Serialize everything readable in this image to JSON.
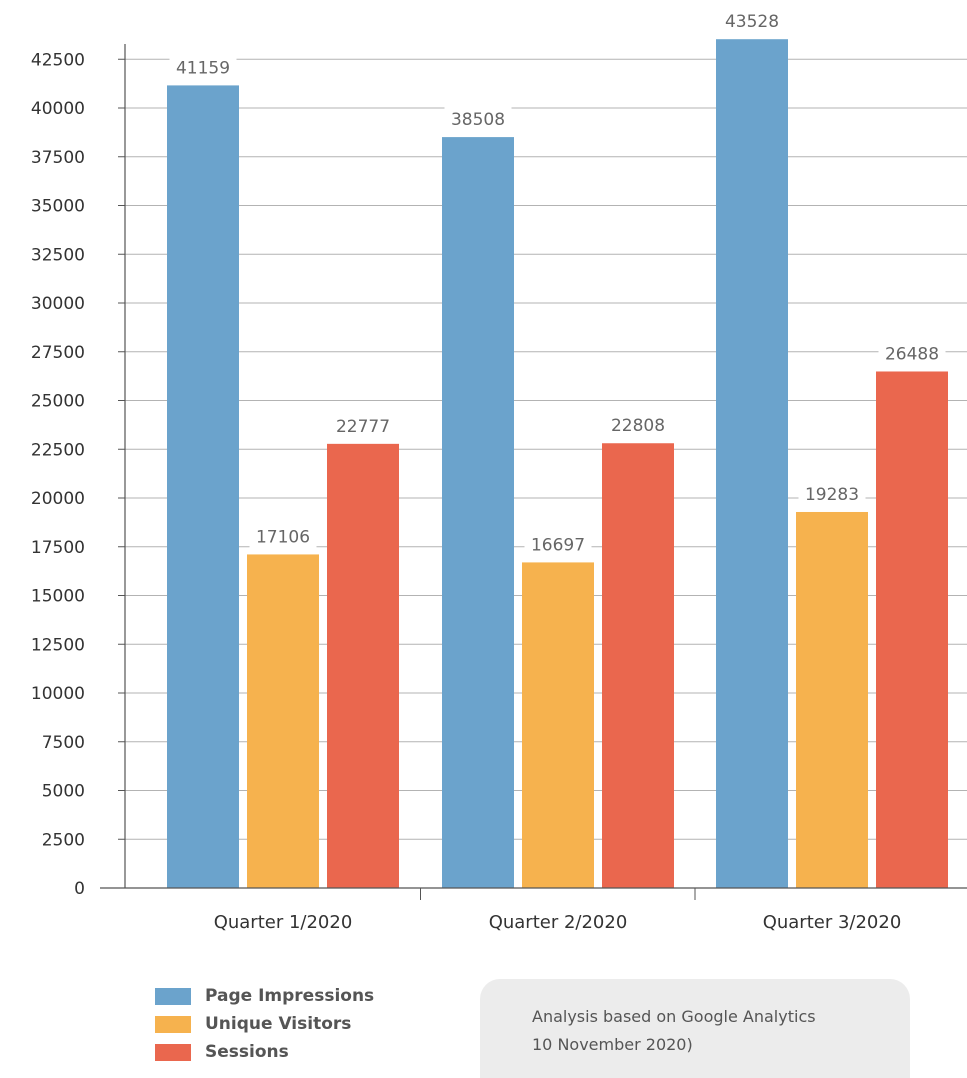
{
  "chart_data": {
    "type": "bar",
    "categories": [
      "Quarter 1/2020",
      "Quarter 2/2020",
      "Quarter 3/2020"
    ],
    "series": [
      {
        "name": "Page Impressions",
        "values": [
          41159,
          38508,
          43528
        ],
        "color": "#6ba3cc"
      },
      {
        "name": "Unique Visitors",
        "values": [
          17106,
          16697,
          19283
        ],
        "color": "#f6b24e"
      },
      {
        "name": "Sessions",
        "values": [
          22777,
          22808,
          26488
        ],
        "color": "#ea674e"
      }
    ],
    "yticks": [
      "0",
      "2500",
      "5000",
      "7500",
      "10000",
      "12500",
      "15000",
      "17500",
      "20000",
      "22500",
      "25000",
      "27500",
      "30000",
      "32500",
      "35000",
      "37500",
      "40000",
      "42500"
    ],
    "ylim": [
      0,
      42500
    ],
    "grid": true,
    "legend_position": "bottom-left"
  },
  "note": {
    "line1": "Analysis based on Google Analytics",
    "line2": "10 November 2020)"
  }
}
